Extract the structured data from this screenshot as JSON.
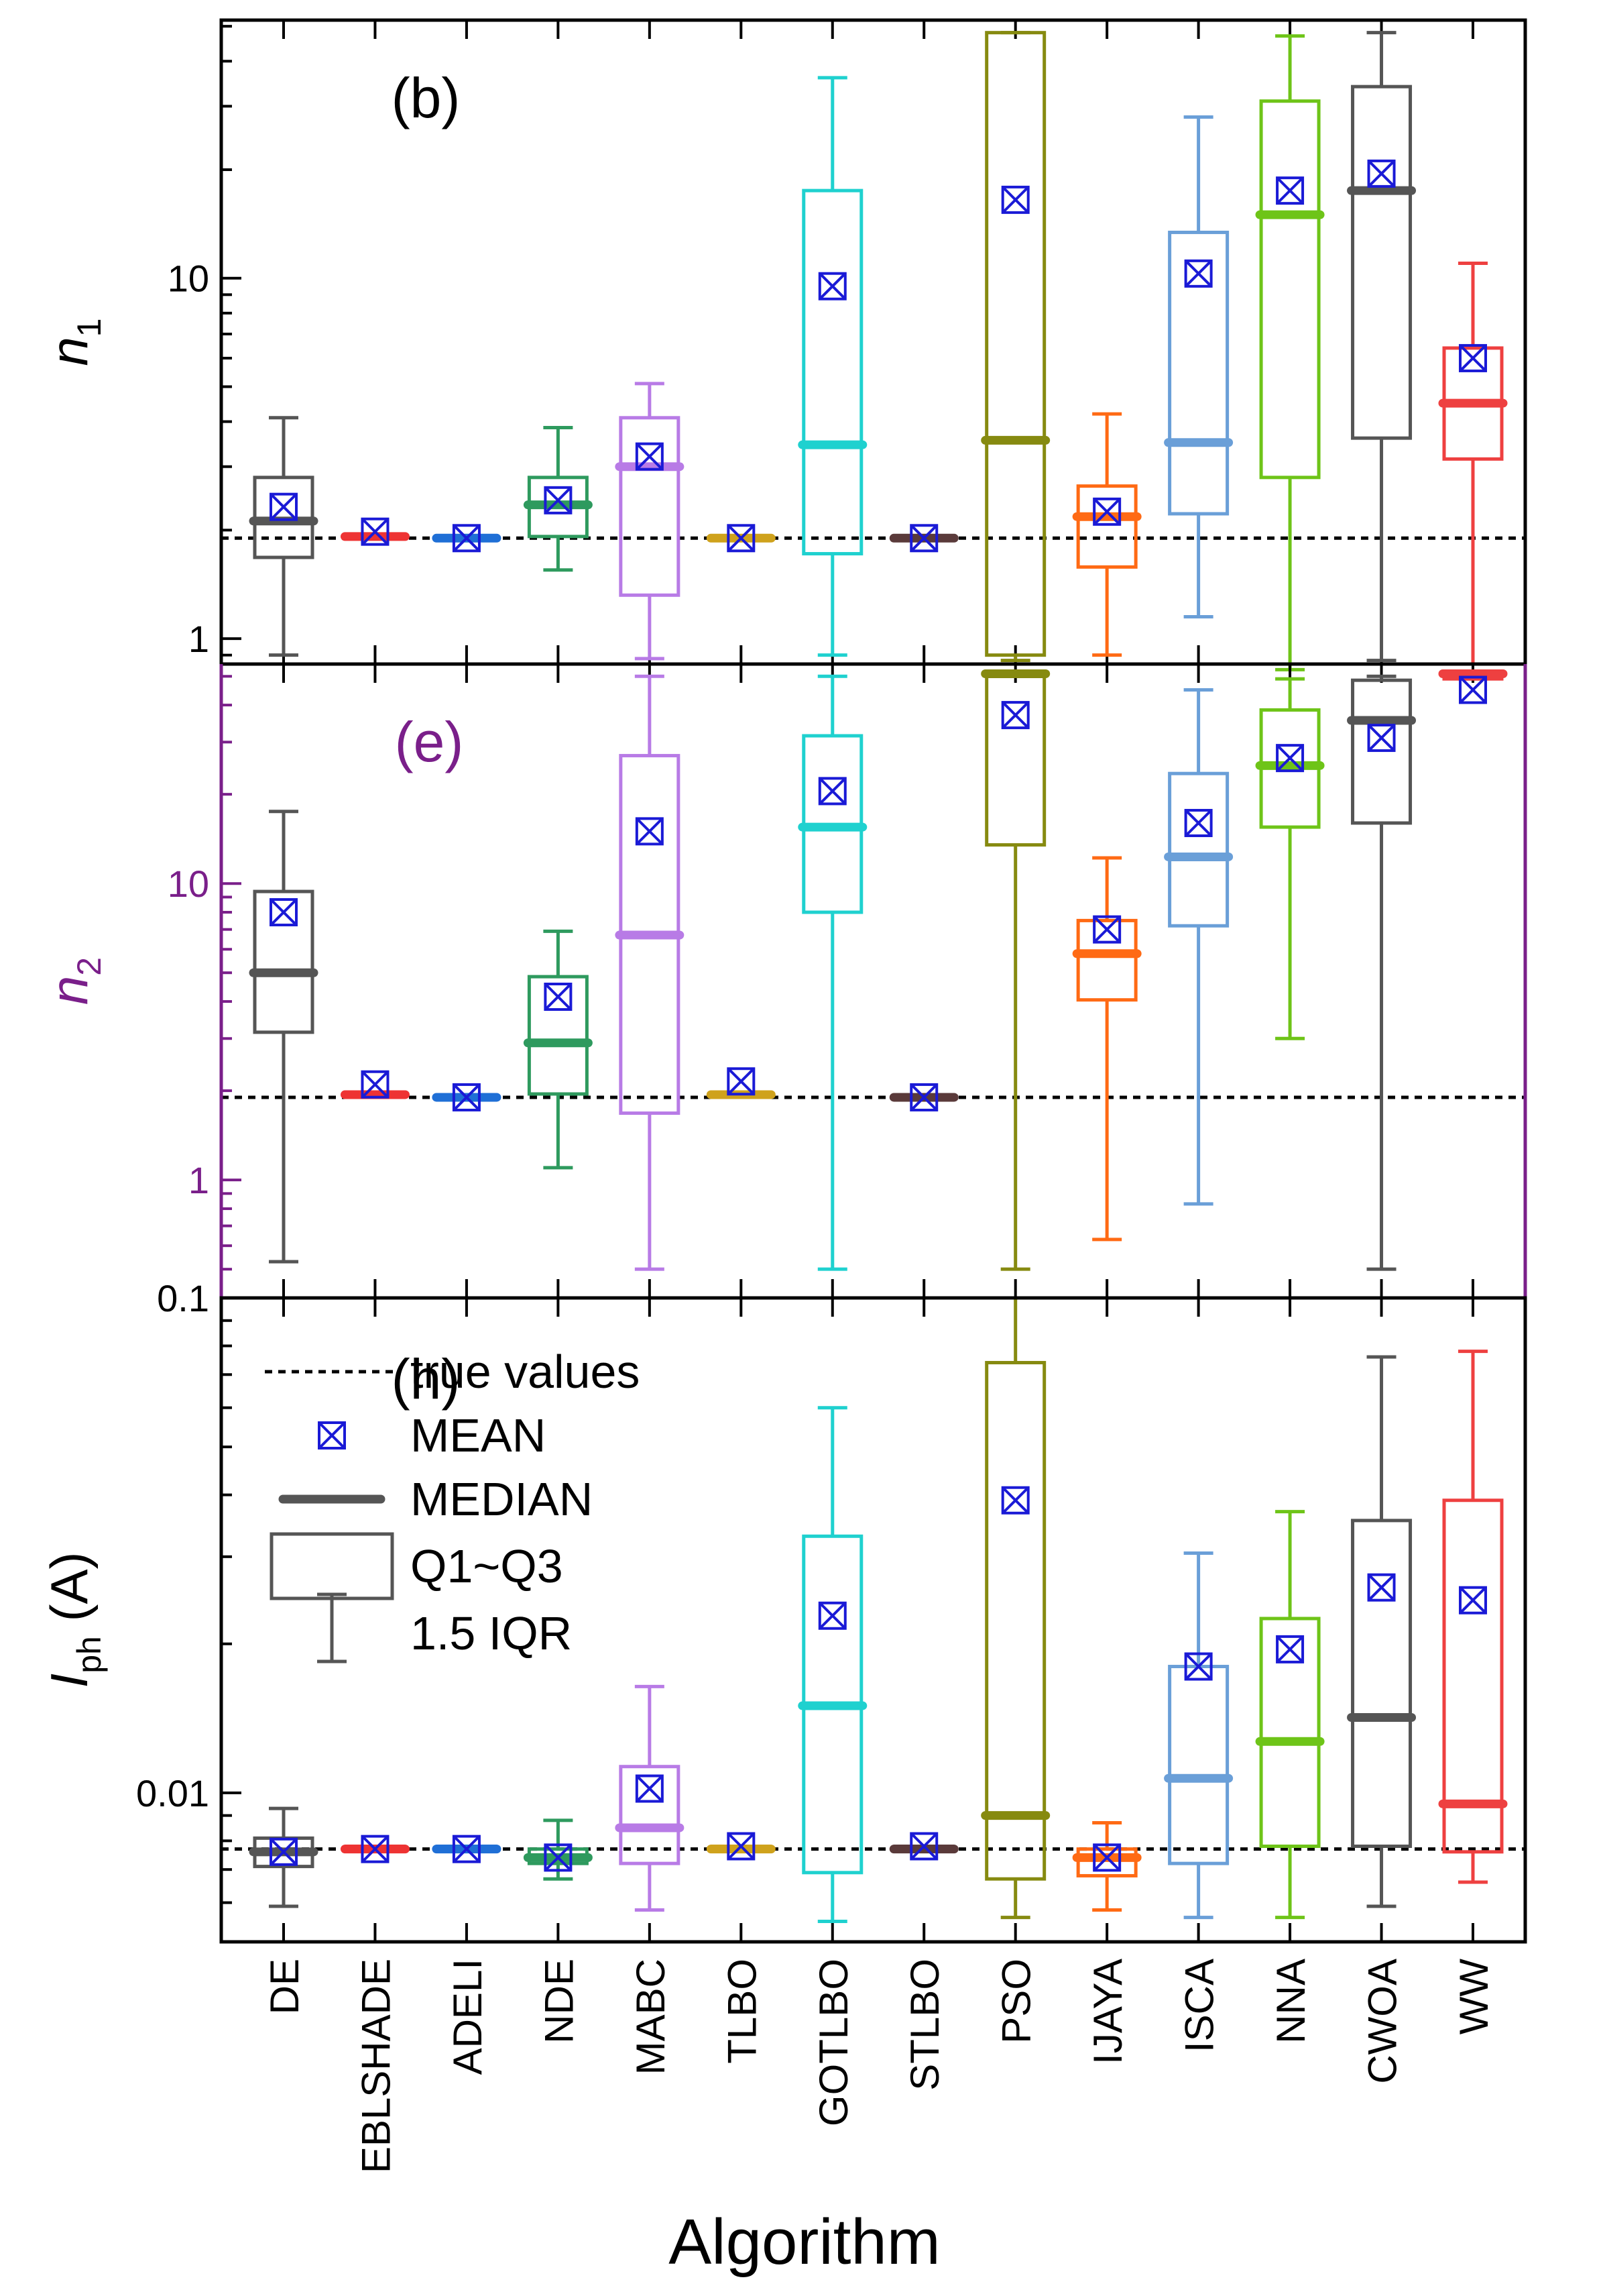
{
  "chart_data": {
    "type": "box",
    "xlabel": "Algorithm",
    "categories": [
      "DE",
      "EBLSHADE",
      "ADELI",
      "NDE",
      "MABC",
      "TLBO",
      "GOTLBO",
      "STLBO",
      "PSO",
      "IJAYA",
      "ISCA",
      "NNA",
      "CWOA",
      "WW"
    ],
    "colors": [
      "#555555",
      "#ee3333",
      "#1f6fd6",
      "#2e9a5e",
      "#b87be6",
      "#cfa21c",
      "#1fd1cf",
      "#5a3a3a",
      "#868a10",
      "#ff6a14",
      "#6a9fd8",
      "#6ec418",
      "#555555",
      "#ee4040"
    ],
    "mean_marker_color": "#1a1ad6",
    "panels": [
      {
        "label": "(b)",
        "ylabel_main": "n",
        "ylabel_sub": "1",
        "label_color": "#000000",
        "frame_color": "#000000",
        "scale": "log",
        "ylim": [
          0.85,
          52
        ],
        "yticks": [
          1,
          10
        ],
        "ytick_labels": [
          "1",
          "10"
        ],
        "true_value": 1.9,
        "boxes": [
          {
            "whisker_low": 0.9,
            "q1": 1.68,
            "median": 2.12,
            "q3": 2.8,
            "whisker_high": 4.1,
            "mean": 2.32
          },
          {
            "whisker_low": 1.9,
            "q1": 1.9,
            "median": 1.92,
            "q3": 1.94,
            "whisker_high": 1.94,
            "mean": 1.98
          },
          {
            "whisker_low": 1.88,
            "q1": 1.88,
            "median": 1.9,
            "q3": 1.92,
            "whisker_high": 1.92,
            "mean": 1.9
          },
          {
            "whisker_low": 1.55,
            "q1": 1.92,
            "median": 2.35,
            "q3": 2.8,
            "whisker_high": 3.85,
            "mean": 2.42
          },
          {
            "whisker_low": 0.88,
            "q1": 1.32,
            "median": 3.0,
            "q3": 4.1,
            "whisker_high": 5.1,
            "mean": 3.2
          },
          {
            "whisker_low": 1.88,
            "q1": 1.88,
            "median": 1.9,
            "q3": 1.92,
            "whisker_high": 1.92,
            "mean": 1.9
          },
          {
            "whisker_low": 0.9,
            "q1": 1.72,
            "median": 3.45,
            "q3": 17.5,
            "whisker_high": 36,
            "mean": 9.5
          },
          {
            "whisker_low": 1.88,
            "q1": 1.88,
            "median": 1.9,
            "q3": 1.92,
            "whisker_high": 1.92,
            "mean": 1.9
          },
          {
            "whisker_low": 0.87,
            "q1": 0.9,
            "median": 3.55,
            "q3": 48,
            "whisker_high": 48,
            "mean": 16.5
          },
          {
            "whisker_low": 0.9,
            "q1": 1.58,
            "median": 2.18,
            "q3": 2.65,
            "whisker_high": 4.2,
            "mean": 2.25
          },
          {
            "whisker_low": 1.15,
            "q1": 2.22,
            "median": 3.5,
            "q3": 13.4,
            "whisker_high": 28,
            "mean": 10.3
          },
          {
            "whisker_low": 0.82,
            "q1": 2.8,
            "median": 15,
            "q3": 31,
            "whisker_high": 47,
            "mean": 17.5
          },
          {
            "whisker_low": 0.87,
            "q1": 3.6,
            "median": 17.5,
            "q3": 34,
            "whisker_high": 48,
            "mean": 19.5
          },
          {
            "whisker_low": 0.85,
            "q1": 3.15,
            "median": 4.5,
            "q3": 6.4,
            "whisker_high": 11,
            "mean": 6.0
          }
        ]
      },
      {
        "label": "(e)",
        "ylabel_main": "n",
        "ylabel_sub": "2",
        "label_color": "#7a1f8a",
        "frame_color": "#7a1f8a",
        "scale": "log",
        "ylim": [
          0.4,
          55
        ],
        "yticks": [
          1,
          10
        ],
        "ytick_labels": [
          "1",
          "10"
        ],
        "true_value": 1.9,
        "boxes": [
          {
            "whisker_low": 0.53,
            "q1": 3.15,
            "median": 5.0,
            "q3": 9.4,
            "whisker_high": 17.5,
            "mean": 8.0
          },
          {
            "whisker_low": 1.92,
            "q1": 1.92,
            "median": 1.94,
            "q3": 1.96,
            "whisker_high": 1.96,
            "mean": 2.1
          },
          {
            "whisker_low": 1.88,
            "q1": 1.88,
            "median": 1.9,
            "q3": 1.92,
            "whisker_high": 1.92,
            "mean": 1.9
          },
          {
            "whisker_low": 1.1,
            "q1": 1.95,
            "median": 2.9,
            "q3": 4.85,
            "whisker_high": 6.9,
            "mean": 4.15
          },
          {
            "whisker_low": 0.5,
            "q1": 1.68,
            "median": 6.7,
            "q3": 27,
            "whisker_high": 50,
            "mean": 15
          },
          {
            "whisker_low": 1.92,
            "q1": 1.92,
            "median": 1.94,
            "q3": 1.96,
            "whisker_high": 1.96,
            "mean": 2.15
          },
          {
            "whisker_low": 0.5,
            "q1": 8.0,
            "median": 15.5,
            "q3": 31.5,
            "whisker_high": 50,
            "mean": 20.5
          },
          {
            "whisker_low": 1.88,
            "q1": 1.88,
            "median": 1.9,
            "q3": 1.92,
            "whisker_high": 1.92,
            "mean": 1.9
          },
          {
            "whisker_low": 0.5,
            "q1": 13.5,
            "median": 51,
            "q3": 51,
            "whisker_high": 51,
            "mean": 37
          },
          {
            "whisker_low": 0.63,
            "q1": 4.05,
            "median": 5.8,
            "q3": 7.5,
            "whisker_high": 12.2,
            "mean": 7.0
          },
          {
            "whisker_low": 0.83,
            "q1": 7.2,
            "median": 12.3,
            "q3": 23.5,
            "whisker_high": 45,
            "mean": 16
          },
          {
            "whisker_low": 3.0,
            "q1": 15.5,
            "median": 25,
            "q3": 38.5,
            "whisker_high": 49,
            "mean": 26.5
          },
          {
            "whisker_low": 0.5,
            "q1": 16,
            "median": 35.5,
            "q3": 48.5,
            "whisker_high": 50,
            "mean": 31
          },
          {
            "whisker_low": 49,
            "q1": 49,
            "median": 51,
            "q3": 52,
            "whisker_high": 52,
            "mean": 45
          }
        ]
      },
      {
        "label": "(h)",
        "ylabel_main": "I",
        "ylabel_sub": "ph",
        "ylabel_unit": " (A)",
        "label_color": "#000000",
        "frame_color": "#000000",
        "scale": "log",
        "ylim": [
          0.005,
          0.1
        ],
        "yticks": [
          0.01,
          0.1
        ],
        "ytick_labels": [
          "0.01",
          "0.1"
        ],
        "true_value": 0.0077,
        "boxes": [
          {
            "whisker_low": 0.0059,
            "q1": 0.0071,
            "median": 0.0076,
            "q3": 0.0081,
            "whisker_high": 0.0093,
            "mean": 0.0076
          },
          {
            "whisker_low": 0.0077,
            "q1": 0.0077,
            "median": 0.0077,
            "q3": 0.0078,
            "whisker_high": 0.0078,
            "mean": 0.0077
          },
          {
            "whisker_low": 0.0077,
            "q1": 0.0077,
            "median": 0.0077,
            "q3": 0.0078,
            "whisker_high": 0.0078,
            "mean": 0.0077
          },
          {
            "whisker_low": 0.0067,
            "q1": 0.0072,
            "median": 0.0074,
            "q3": 0.0077,
            "whisker_high": 0.0088,
            "mean": 0.0074
          },
          {
            "whisker_low": 0.0058,
            "q1": 0.0072,
            "median": 0.0085,
            "q3": 0.0113,
            "whisker_high": 0.0164,
            "mean": 0.0102
          },
          {
            "whisker_low": 0.0077,
            "q1": 0.0077,
            "median": 0.0077,
            "q3": 0.0078,
            "whisker_high": 0.0078,
            "mean": 0.0078
          },
          {
            "whisker_low": 0.0055,
            "q1": 0.0069,
            "median": 0.015,
            "q3": 0.033,
            "whisker_high": 0.06,
            "mean": 0.0228
          },
          {
            "whisker_low": 0.0077,
            "q1": 0.0077,
            "median": 0.0077,
            "q3": 0.0078,
            "whisker_high": 0.0078,
            "mean": 0.0078
          },
          {
            "whisker_low": 0.0056,
            "q1": 0.0067,
            "median": 0.009,
            "q3": 0.074,
            "whisker_high": 0.1,
            "mean": 0.039
          },
          {
            "whisker_low": 0.0058,
            "q1": 0.0068,
            "median": 0.0074,
            "q3": 0.0077,
            "whisker_high": 0.0087,
            "mean": 0.0074
          },
          {
            "whisker_low": 0.0056,
            "q1": 0.0072,
            "median": 0.0107,
            "q3": 0.018,
            "whisker_high": 0.0305,
            "mean": 0.018
          },
          {
            "whisker_low": 0.0056,
            "q1": 0.0078,
            "median": 0.0127,
            "q3": 0.0225,
            "whisker_high": 0.037,
            "mean": 0.0195
          },
          {
            "whisker_low": 0.0059,
            "q1": 0.0078,
            "median": 0.0142,
            "q3": 0.0355,
            "whisker_high": 0.076,
            "mean": 0.026
          },
          {
            "whisker_low": 0.0066,
            "q1": 0.0076,
            "median": 0.0095,
            "q3": 0.039,
            "whisker_high": 0.078,
            "mean": 0.0245
          }
        ],
        "legend": {
          "placement": "left",
          "items": [
            {
              "kind": "line",
              "label": "true values"
            },
            {
              "kind": "mean",
              "label": "MEAN"
            },
            {
              "kind": "median",
              "label": "MEDIAN"
            },
            {
              "kind": "box",
              "label": "Q1~Q3"
            },
            {
              "kind": "whisker",
              "label": "1.5 IQR"
            }
          ]
        }
      }
    ]
  }
}
